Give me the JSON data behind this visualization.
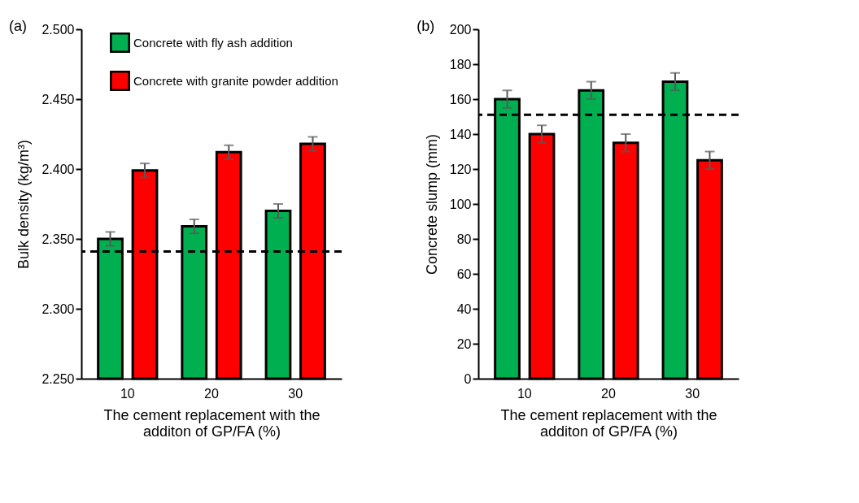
{
  "chart_data": [
    {
      "type": "bar",
      "title": "(a)",
      "xlabel": "The cement replacement with the additon of GP/FA (%)",
      "ylabel": "Bulk density (kg/m³)",
      "categories": [
        "10",
        "20",
        "30"
      ],
      "series": [
        {
          "name": "Concrete with fly ash addition",
          "color": "#00b050",
          "values": [
            2.35,
            2.359,
            2.37
          ],
          "errors": [
            0.005,
            0.005,
            0.005
          ]
        },
        {
          "name": "Concrete with granite powder addition",
          "color": "#ff0000",
          "values": [
            2.399,
            2.412,
            2.418
          ],
          "errors": [
            0.005,
            0.005,
            0.005
          ]
        }
      ],
      "ylim": [
        2.25,
        2.5
      ],
      "yticks": [
        {
          "value": 2.25,
          "label": "2.250"
        },
        {
          "value": 2.3,
          "label": "2.300"
        },
        {
          "value": 2.35,
          "label": "2.350"
        },
        {
          "value": 2.4,
          "label": "2.400"
        },
        {
          "value": 2.45,
          "label": "2.450"
        },
        {
          "value": 2.5,
          "label": "2.500"
        }
      ],
      "ref_lines": [
        {
          "axis": "y",
          "value": 2.341,
          "line_style": "dashed"
        }
      ],
      "legend": "top right",
      "grid": false
    },
    {
      "type": "bar",
      "title": "(b)",
      "xlabel": "The cement replacement with the additon of GP/FA (%)",
      "ylabel": "Concrete slump (mm)",
      "categories": [
        "10",
        "20",
        "30"
      ],
      "series": [
        {
          "color": "#00b050",
          "values": [
            160,
            165,
            170
          ],
          "errors": [
            5,
            5,
            5
          ]
        },
        {
          "color": "#ff0000",
          "values": [
            140,
            135,
            125
          ],
          "errors": [
            5,
            5,
            5
          ]
        }
      ],
      "ylim": [
        0,
        200
      ],
      "yticks": [
        0,
        20,
        40,
        60,
        80,
        100,
        120,
        140,
        160,
        180,
        200
      ],
      "ref_lines": [
        {
          "axis": "y",
          "value": 151,
          "line_style": "dashed"
        }
      ],
      "grid": false
    }
  ]
}
